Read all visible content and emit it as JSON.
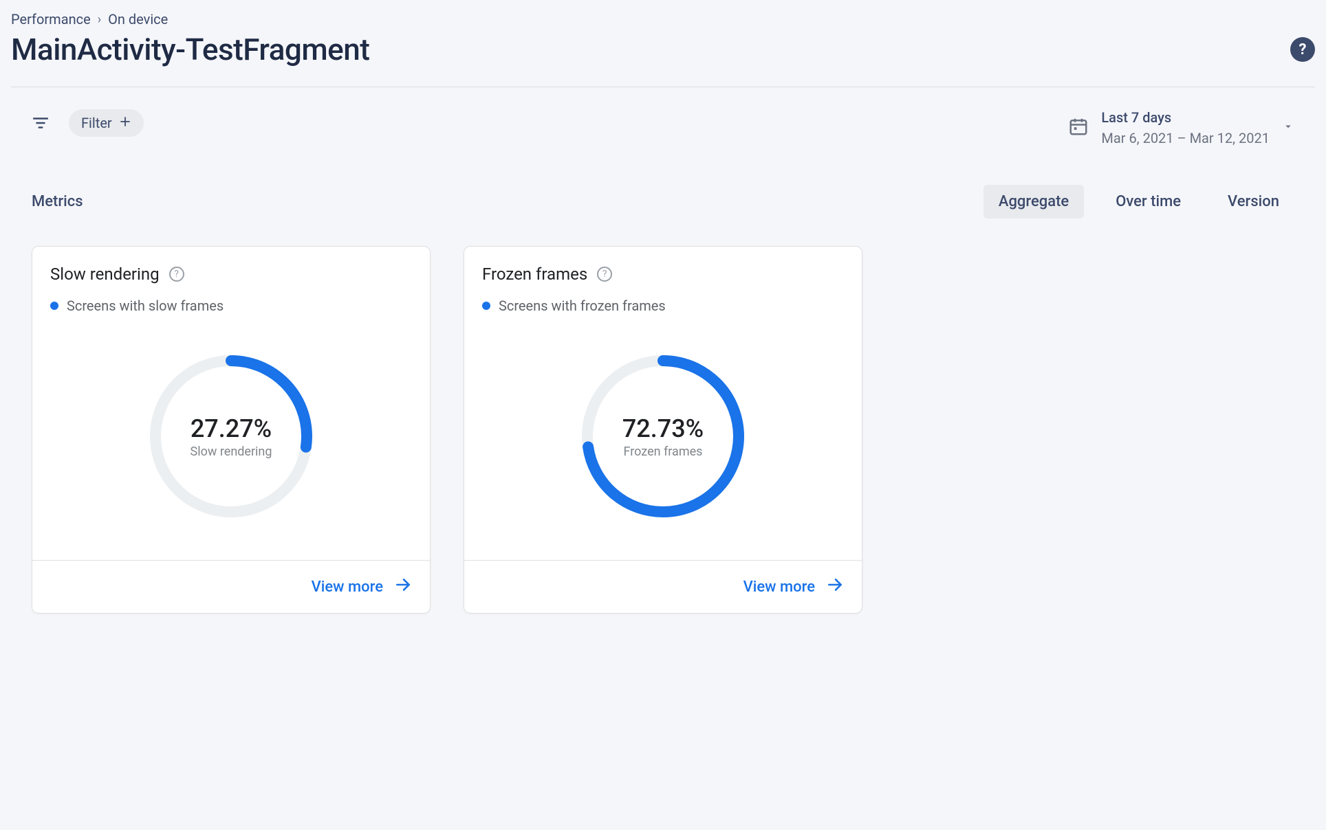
{
  "breadcrumb": {
    "parent": "Performance",
    "child": "On device"
  },
  "page_title": "MainActivity-TestFragment",
  "filter": {
    "chip_label": "Filter"
  },
  "date_picker": {
    "primary": "Last 7 days",
    "secondary": "Mar 6, 2021 – Mar 12, 2021"
  },
  "section_title": "Metrics",
  "tabs": {
    "aggregate": "Aggregate",
    "over_time": "Over time",
    "version": "Version",
    "active": "aggregate"
  },
  "colors": {
    "accent": "#1a73e8",
    "track": "#eceff1",
    "text_primary": "#202124",
    "text_secondary": "#5f6368",
    "card_bg": "#ffffff",
    "page_bg": "#f5f6fa"
  },
  "cards": [
    {
      "id": "slow_rendering",
      "title": "Slow rendering",
      "legend": "Screens with slow frames",
      "percent": 27.27,
      "display_value": "27.27%",
      "center_label": "Slow rendering",
      "view_more": "View more",
      "donut": {
        "type": "donut",
        "radius": 110,
        "stroke_width": 16,
        "track_color": "#eceff1",
        "fill_color": "#1a73e8",
        "start_angle_deg": 0
      }
    },
    {
      "id": "frozen_frames",
      "title": "Frozen frames",
      "legend": "Screens with frozen frames",
      "percent": 72.73,
      "display_value": "72.73%",
      "center_label": "Frozen frames",
      "view_more": "View more",
      "donut": {
        "type": "donut",
        "radius": 110,
        "stroke_width": 16,
        "track_color": "#eceff1",
        "fill_color": "#1a73e8",
        "start_angle_deg": 0
      }
    }
  ]
}
